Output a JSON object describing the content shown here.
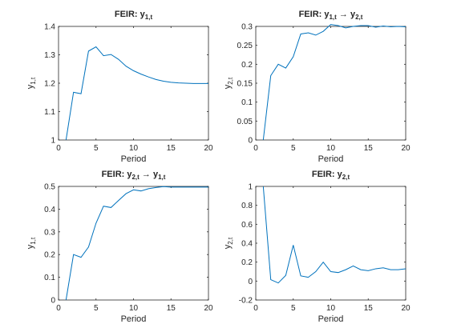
{
  "chart_data": [
    {
      "type": "line",
      "title_main": "FEIR: y",
      "title_sub": "1,t",
      "title_tail": "",
      "xlabel": "Period",
      "ylabel_main": "y",
      "ylabel_sub": "1,t",
      "xlim": [
        0,
        20
      ],
      "ylim": [
        1,
        1.4
      ],
      "xticks": [
        0,
        5,
        10,
        15,
        20
      ],
      "yticks": [
        1,
        1.1,
        1.2,
        1.3,
        1.4
      ],
      "ytick_labels": [
        "1",
        "1.1",
        "1.2",
        "1.3",
        "1.4"
      ],
      "grid": false,
      "color": "#0072BD",
      "x": [
        1,
        2,
        3,
        4,
        5,
        6,
        7,
        8,
        9,
        10,
        11,
        12,
        13,
        14,
        15,
        16,
        17,
        18,
        19,
        20
      ],
      "y": [
        1.0,
        1.168,
        1.163,
        1.313,
        1.328,
        1.297,
        1.301,
        1.284,
        1.26,
        1.244,
        1.232,
        1.222,
        1.213,
        1.207,
        1.203,
        1.201,
        1.2,
        1.199,
        1.199,
        1.199
      ]
    },
    {
      "type": "line",
      "title_main": "FEIR: y",
      "title_sub": "1,t",
      "title_tail": "y",
      "title_tail_sub": "2,t",
      "xlabel": "Period",
      "ylabel_main": "y",
      "ylabel_sub": "2,t",
      "xlim": [
        0,
        20
      ],
      "ylim": [
        0,
        0.3
      ],
      "xticks": [
        0,
        5,
        10,
        15,
        20
      ],
      "yticks": [
        0,
        0.05,
        0.1,
        0.15,
        0.2,
        0.25,
        0.3
      ],
      "ytick_labels": [
        "0",
        "0.05",
        "0.1",
        "0.15",
        "0.2",
        "0.25",
        "0.3"
      ],
      "grid": false,
      "color": "#0072BD",
      "x": [
        1,
        2,
        3,
        4,
        5,
        6,
        7,
        8,
        9,
        10,
        11,
        12,
        13,
        14,
        15,
        16,
        17,
        18,
        19,
        20
      ],
      "y": [
        0.0,
        0.17,
        0.2,
        0.19,
        0.22,
        0.28,
        0.283,
        0.277,
        0.287,
        0.305,
        0.302,
        0.296,
        0.3,
        0.302,
        0.302,
        0.298,
        0.301,
        0.299,
        0.3,
        0.299
      ]
    },
    {
      "type": "line",
      "title_main": "FEIR: y",
      "title_sub": "2,t",
      "title_tail": "y",
      "title_tail_sub": "1,t",
      "xlabel": "Period",
      "ylabel_main": "y",
      "ylabel_sub": "1,t",
      "xlim": [
        0,
        20
      ],
      "ylim": [
        0,
        0.5
      ],
      "xticks": [
        0,
        5,
        10,
        15,
        20
      ],
      "yticks": [
        0,
        0.1,
        0.2,
        0.3,
        0.4,
        0.5
      ],
      "ytick_labels": [
        "0",
        "0.1",
        "0.2",
        "0.3",
        "0.4",
        "0.5"
      ],
      "grid": false,
      "color": "#0072BD",
      "x": [
        1,
        2,
        3,
        4,
        5,
        6,
        7,
        8,
        9,
        10,
        11,
        12,
        13,
        14,
        15,
        16,
        17,
        18,
        19,
        20
      ],
      "y": [
        0.0,
        0.2,
        0.188,
        0.233,
        0.338,
        0.413,
        0.407,
        0.438,
        0.468,
        0.485,
        0.48,
        0.49,
        0.495,
        0.499,
        0.497,
        0.497,
        0.497,
        0.497,
        0.497,
        0.497
      ]
    },
    {
      "type": "line",
      "title_main": "FEIR: y",
      "title_sub": "2,t",
      "title_tail": "",
      "xlabel": "Period",
      "ylabel_main": "y",
      "ylabel_sub": "2,t",
      "xlim": [
        0,
        20
      ],
      "ylim": [
        -0.2,
        1
      ],
      "xticks": [
        0,
        5,
        10,
        15,
        20
      ],
      "yticks": [
        -0.2,
        0,
        0.2,
        0.4,
        0.6,
        0.8,
        1
      ],
      "ytick_labels": [
        "-0.2",
        "0",
        "0.2",
        "0.4",
        "0.6",
        "0.8",
        "1"
      ],
      "grid": false,
      "color": "#0072BD",
      "x": [
        1,
        2,
        3,
        4,
        5,
        6,
        7,
        8,
        9,
        10,
        11,
        12,
        13,
        14,
        15,
        16,
        17,
        18,
        19,
        20
      ],
      "y": [
        1.0,
        0.015,
        -0.02,
        0.06,
        0.38,
        0.055,
        0.04,
        0.1,
        0.2,
        0.1,
        0.09,
        0.12,
        0.16,
        0.12,
        0.11,
        0.13,
        0.14,
        0.12,
        0.12,
        0.13
      ]
    }
  ]
}
